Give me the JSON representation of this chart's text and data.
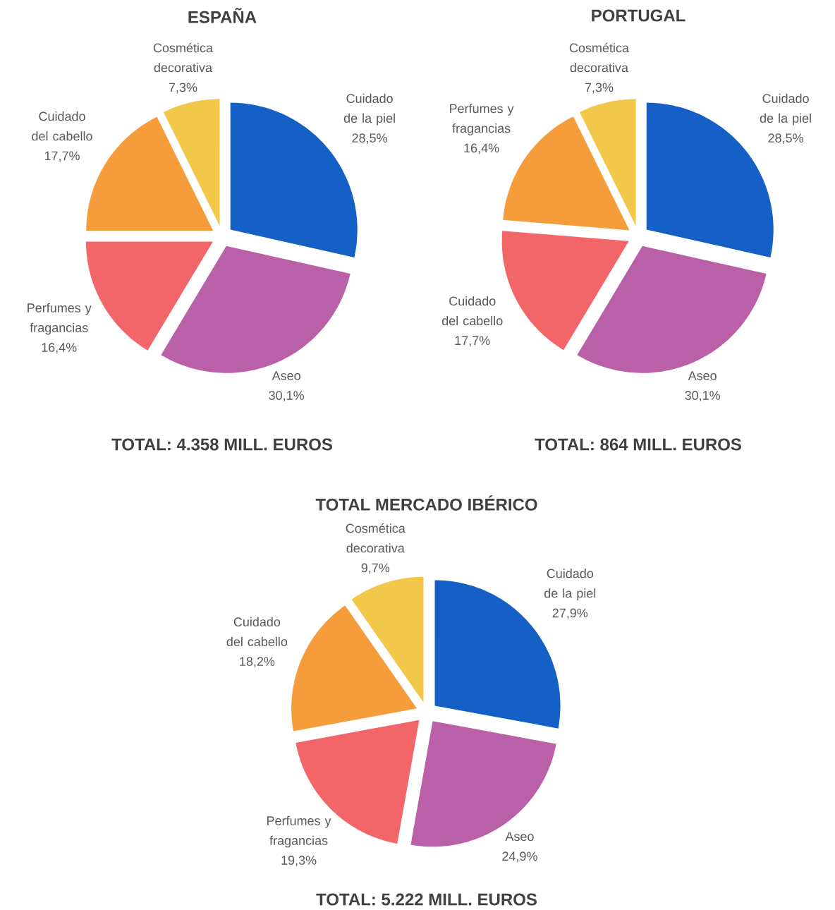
{
  "chart_data": [
    {
      "type": "pie",
      "title": "ESPAÑA",
      "categories": [
        "Cuidado de la piel",
        "Aseo",
        "Perfumes y fragancias",
        "Cuidado del cabello",
        "Cosmética decorativa"
      ],
      "values": [
        28.5,
        30.1,
        16.4,
        17.7,
        7.3
      ],
      "colors": [
        "#1560c6",
        "#b960a8",
        "#f2666a",
        "#f59d3a",
        "#f2c84b"
      ],
      "value_labels": [
        "28,5%",
        "30,1%",
        "16,4%",
        "17,7%",
        "7,3%"
      ],
      "annotations": [
        "TOTAL: 4.358 MILL. EUROS"
      ]
    },
    {
      "type": "pie",
      "title": "PORTUGAL",
      "categories": [
        "Cuidado de la piel",
        "Aseo",
        "Cuidado del cabello",
        "Perfumes y fragancias",
        "Cosmética decorativa"
      ],
      "values": [
        28.5,
        30.1,
        17.7,
        16.4,
        7.3
      ],
      "colors": [
        "#1560c6",
        "#b960a8",
        "#f2666a",
        "#f59d3a",
        "#f2c84b"
      ],
      "value_labels": [
        "28,5%",
        "30,1%",
        "17,7%",
        "16,4%",
        "7,3%"
      ],
      "annotations": [
        "TOTAL: 864 MILL. EUROS"
      ]
    },
    {
      "type": "pie",
      "title": "TOTAL MERCADO IBÉRICO",
      "categories": [
        "Cuidado de la piel",
        "Aseo",
        "Perfumes y fragancias",
        "Cuidado del cabello",
        "Cosmética decorativa"
      ],
      "values": [
        27.9,
        24.9,
        19.3,
        18.2,
        9.7
      ],
      "colors": [
        "#1560c6",
        "#b960a8",
        "#f2666a",
        "#f59d3a",
        "#f2c84b"
      ],
      "value_labels": [
        "27,9%",
        "24,9%",
        "19,3%",
        "18,2%",
        "9,7%"
      ],
      "annotations": [
        "TOTAL: 5.222 MILL. EUROS"
      ]
    }
  ]
}
